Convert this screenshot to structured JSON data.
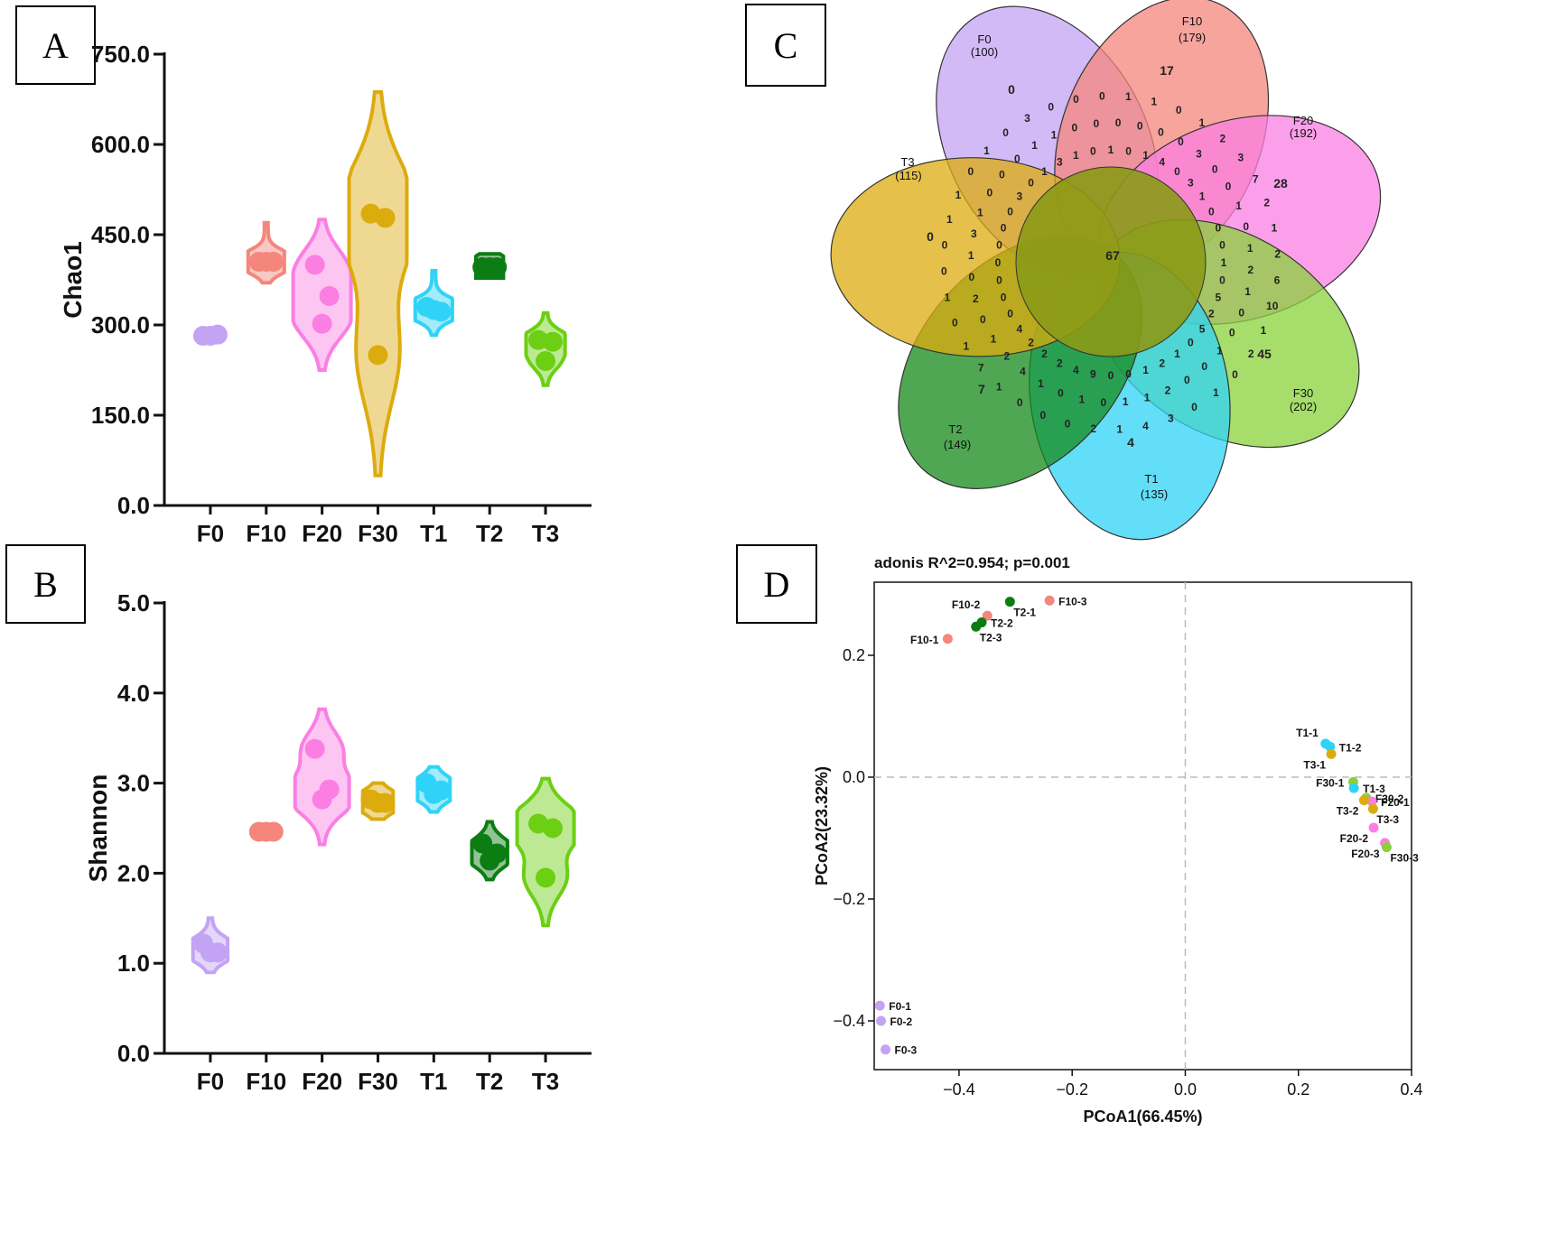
{
  "panels": {
    "a": "A",
    "b": "B",
    "c": "C",
    "d": "D"
  },
  "chart_data": [
    {
      "id": "A",
      "type": "violin",
      "title": "",
      "xlabel": "",
      "ylabel": "Chao1",
      "ylim": [
        0,
        750
      ],
      "yticks": [
        "0.0",
        "150.0",
        "300.0",
        "450.0",
        "600.0",
        "750.0"
      ],
      "categories": [
        "F0",
        "F10",
        "F20",
        "F30",
        "T1",
        "T2",
        "T3"
      ],
      "colors": [
        "#c3a3f4",
        "#f4867c",
        "#fb7fe3",
        "#dcab0e",
        "#2fd3f7",
        "#0b7d13",
        "#6ccf13"
      ],
      "series": [
        {
          "name": "F0",
          "points": [
            282,
            284,
            282
          ],
          "range": [
            276,
            290
          ]
        },
        {
          "name": "F10",
          "points": [
            405,
            405,
            405
          ],
          "range": [
            370,
            470
          ]
        },
        {
          "name": "F20",
          "points": [
            400,
            348,
            302
          ],
          "range": [
            225,
            475
          ]
        },
        {
          "name": "F30",
          "points": [
            485,
            478,
            250
          ],
          "range": [
            50,
            687
          ]
        },
        {
          "name": "T1",
          "points": [
            330,
            322,
            325
          ],
          "range": [
            283,
            390
          ]
        },
        {
          "name": "T2",
          "points": [
            396,
            396,
            396
          ],
          "range": [
            378,
            418
          ]
        },
        {
          "name": "T3",
          "points": [
            275,
            272,
            240
          ],
          "range": [
            200,
            320
          ]
        }
      ]
    },
    {
      "id": "B",
      "type": "violin",
      "title": "",
      "xlabel": "",
      "ylabel": "Shannon",
      "ylim": [
        0,
        5
      ],
      "yticks": [
        "0.0",
        "1.0",
        "2.0",
        "3.0",
        "4.0",
        "5.0"
      ],
      "categories": [
        "F0",
        "F10",
        "F20",
        "F30",
        "T1",
        "T2",
        "T3"
      ],
      "colors": [
        "#c3a3f4",
        "#f4867c",
        "#fb7fe3",
        "#dcab0e",
        "#2fd3f7",
        "#0b7d13",
        "#6ccf13"
      ],
      "series": [
        {
          "name": "F0",
          "points": [
            1.22,
            1.12,
            1.12
          ],
          "range": [
            0.9,
            1.5
          ]
        },
        {
          "name": "F10",
          "points": [
            2.46,
            2.46,
            2.46
          ],
          "range": [
            2.43,
            2.49
          ]
        },
        {
          "name": "F20",
          "points": [
            3.38,
            2.93,
            2.82
          ],
          "range": [
            2.32,
            3.82
          ]
        },
        {
          "name": "F30",
          "points": [
            2.82,
            2.78,
            2.78
          ],
          "range": [
            2.6,
            3.0
          ]
        },
        {
          "name": "T1",
          "points": [
            3.0,
            2.92,
            2.88
          ],
          "range": [
            2.68,
            3.18
          ]
        },
        {
          "name": "T2",
          "points": [
            2.33,
            2.22,
            2.14
          ],
          "range": [
            1.93,
            2.57
          ]
        },
        {
          "name": "T3",
          "points": [
            2.55,
            2.5,
            1.95
          ],
          "range": [
            1.42,
            3.05
          ]
        }
      ]
    },
    {
      "id": "C",
      "type": "venn",
      "title": "",
      "sets": [
        {
          "name": "F0",
          "total": "(100)",
          "color": "#c3a3f4"
        },
        {
          "name": "F10",
          "total": "(179)",
          "color": "#f4867c"
        },
        {
          "name": "F20",
          "total": "(192)",
          "color": "#fb7fe3"
        },
        {
          "name": "F30",
          "total": "(202)",
          "color": "#89d13a"
        },
        {
          "name": "T1",
          "total": "(135)",
          "color": "#2fd3f7"
        },
        {
          "name": "T2",
          "total": "(149)",
          "color": "#168a1a"
        },
        {
          "name": "T3",
          "total": "(115)",
          "color": "#dcab0e"
        }
      ],
      "unique_counts": [
        "0",
        "17",
        "28",
        "45",
        "4",
        "7",
        "0"
      ],
      "core": "67",
      "cell_counts": [
        "1",
        "0",
        "1",
        "0",
        "0",
        "1",
        "1",
        "0",
        "0",
        "4",
        "0",
        "1",
        "0",
        "3",
        "2",
        "3",
        "0",
        "3",
        "1",
        "0",
        "7",
        "0",
        "1",
        "2",
        "0",
        "0",
        "1",
        "0",
        "1",
        "2",
        "1",
        "2",
        "6",
        "0",
        "1",
        "10",
        "5",
        "0",
        "1",
        "2",
        "0",
        "2",
        "5",
        "1",
        "0",
        "0",
        "0",
        "1",
        "1",
        "0",
        "0",
        "2",
        "2",
        "3",
        "1",
        "1",
        "4",
        "0",
        "1",
        "1",
        "0",
        "0",
        "2",
        "9",
        "1",
        "0",
        "4",
        "0",
        "0",
        "2",
        "1",
        "0",
        "2",
        "4",
        "1",
        "2",
        "2",
        "7",
        "4",
        "1",
        "1",
        "0",
        "0",
        "0",
        "0",
        "2",
        "1",
        "0",
        "0",
        "0",
        "0",
        "1",
        "0",
        "0",
        "3",
        "1",
        "0",
        "1",
        "1",
        "0",
        "0",
        "0",
        "3",
        "0",
        "1",
        "0",
        "0",
        "0",
        "1",
        "1",
        "3",
        "3",
        "1",
        "0",
        "1",
        "0",
        "0",
        "0",
        "0",
        "0"
      ]
    },
    {
      "id": "D",
      "type": "scatter",
      "title": "adonis R^2=0.954; p=0.001",
      "xlabel": "PCoA1(66.45%)",
      "ylabel": "PCoA2(23.32%)",
      "xlim": [
        -0.55,
        0.4
      ],
      "ylim": [
        -0.48,
        0.32
      ],
      "xticks": [
        -0.4,
        -0.2,
        0.0,
        0.2,
        0.4
      ],
      "xticklabels": [
        "−0.4",
        "−0.2",
        "0.0",
        "0.2",
        "0.4"
      ],
      "yticks": [
        -0.4,
        -0.2,
        0.0,
        0.2
      ],
      "yticklabels": [
        "−0.4",
        "−0.2",
        "0.0",
        "0.2"
      ],
      "points": [
        {
          "label": "F10-1",
          "x": -0.42,
          "y": 0.227,
          "color": "#f4867c",
          "side": "left"
        },
        {
          "label": "F10-2",
          "x": -0.35,
          "y": 0.265,
          "color": "#f4867c",
          "side": "topleft"
        },
        {
          "label": "F10-3",
          "x": -0.24,
          "y": 0.29,
          "color": "#f4867c",
          "side": "right"
        },
        {
          "label": "T2-1",
          "x": -0.31,
          "y": 0.288,
          "color": "#0b7d13",
          "side": "belowright"
        },
        {
          "label": "T2-2",
          "x": -0.36,
          "y": 0.254,
          "color": "#0b7d13",
          "side": "right"
        },
        {
          "label": "T2-3",
          "x": -0.37,
          "y": 0.247,
          "color": "#0b7d13",
          "side": "belowright"
        },
        {
          "label": "T1-1",
          "x": 0.248,
          "y": 0.055,
          "color": "#2fd3f7",
          "side": "topleft"
        },
        {
          "label": "T1-2",
          "x": 0.256,
          "y": 0.05,
          "color": "#2fd3f7",
          "side": "right"
        },
        {
          "label": "T3-1",
          "x": 0.258,
          "y": 0.038,
          "color": "#dcab0e",
          "side": "belowleft"
        },
        {
          "label": "F30-1",
          "x": 0.297,
          "y": -0.008,
          "color": "#89d13a",
          "side": "left"
        },
        {
          "label": "T1-3",
          "x": 0.298,
          "y": -0.018,
          "color": "#2fd3f7",
          "side": "right"
        },
        {
          "label": "F30-2",
          "x": 0.32,
          "y": -0.034,
          "color": "#89d13a",
          "side": "right"
        },
        {
          "label": "F20-1",
          "x": 0.33,
          "y": -0.04,
          "color": "#fb7fe3",
          "side": "right"
        },
        {
          "label": "T3-2",
          "x": 0.316,
          "y": -0.038,
          "color": "#dcab0e",
          "side": "belowleft"
        },
        {
          "label": "T3-3",
          "x": 0.332,
          "y": -0.052,
          "color": "#dcab0e",
          "side": "belowright"
        },
        {
          "label": "F20-2",
          "x": 0.333,
          "y": -0.083,
          "color": "#fb7fe3",
          "side": "belowleft"
        },
        {
          "label": "F20-3",
          "x": 0.353,
          "y": -0.108,
          "color": "#fb7fe3",
          "side": "belowleft"
        },
        {
          "label": "F30-3",
          "x": 0.356,
          "y": -0.115,
          "color": "#89d13a",
          "side": "belowright"
        },
        {
          "label": "F0-1",
          "x": -0.54,
          "y": -0.375,
          "color": "#c3a3f4",
          "side": "right"
        },
        {
          "label": "F0-2",
          "x": -0.538,
          "y": -0.4,
          "color": "#c3a3f4",
          "side": "right"
        },
        {
          "label": "F0-3",
          "x": -0.53,
          "y": -0.447,
          "color": "#c3a3f4",
          "side": "right"
        }
      ]
    }
  ]
}
